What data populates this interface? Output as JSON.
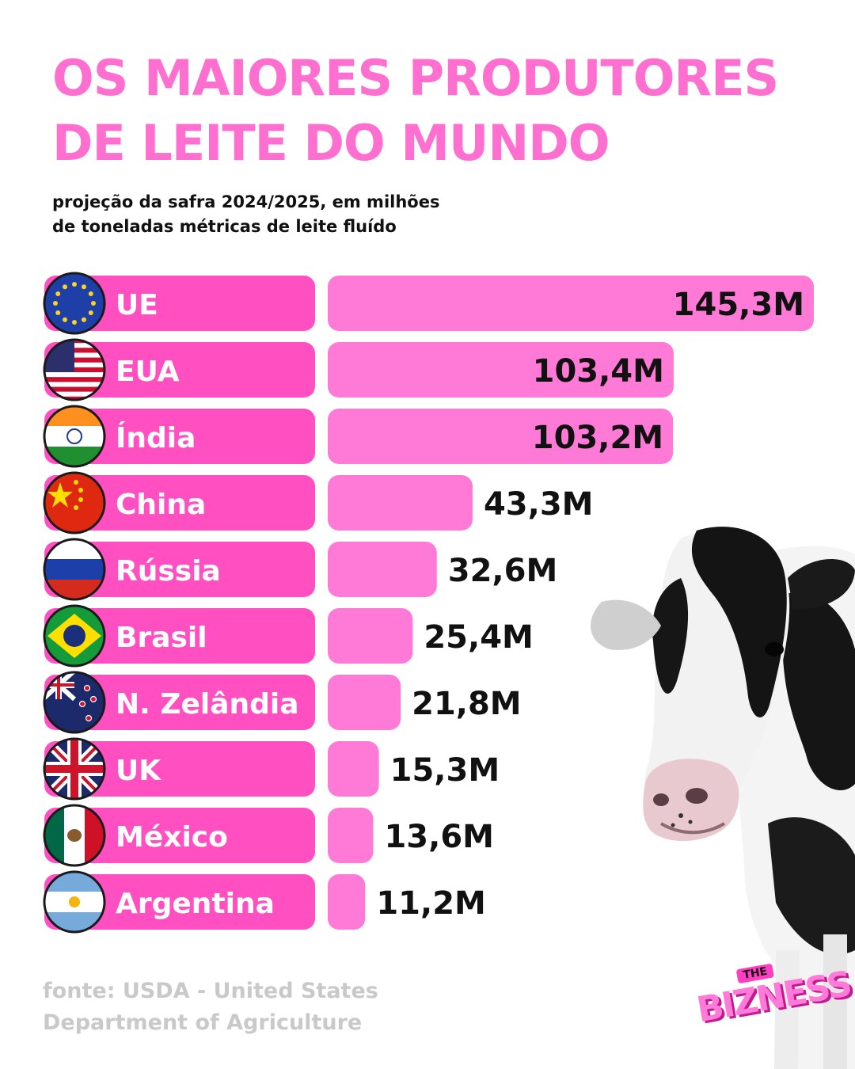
{
  "header": {
    "title_line1": "OS MAIORES PRODUTORES",
    "title_line2": "DE LEITE DO MUNDO",
    "subtitle_line1": "projeção da safra 2024/2025, em milhões",
    "subtitle_line2": "de toneladas métricas de leite fluído"
  },
  "footer": {
    "source_line1": "fonte: USDA - United States",
    "source_line2": "Department of Agriculture",
    "brand_small": "THE",
    "brand_big": "BIZNESS"
  },
  "colors": {
    "title": "#ff6fcf",
    "country_bar": "#ff4fc0",
    "value_bar": "#ff7ad6",
    "text_dark": "#111111",
    "source": "#c9c9c9"
  },
  "chart_data": {
    "type": "bar",
    "orientation": "horizontal",
    "categories": [
      "UE",
      "EUA",
      "Índia",
      "China",
      "Rússia",
      "Brasil",
      "N. Zelândia",
      "UK",
      "México",
      "Argentina"
    ],
    "values": [
      145.3,
      103.4,
      103.2,
      43.3,
      32.6,
      25.4,
      21.8,
      15.3,
      13.6,
      11.2
    ],
    "value_labels": [
      "145,3M",
      "103,4M",
      "103,2M",
      "43,3M",
      "32,6M",
      "25,4M",
      "21,8M",
      "15,3M",
      "13,6M",
      "11,2M"
    ],
    "flag_icons": [
      "eu-flag-icon",
      "usa-flag-icon",
      "india-flag-icon",
      "china-flag-icon",
      "russia-flag-icon",
      "brazil-flag-icon",
      "new-zealand-flag-icon",
      "uk-flag-icon",
      "mexico-flag-icon",
      "argentina-flag-icon"
    ],
    "title": "OS MAIORES PRODUTORES DE LEITE DO MUNDO",
    "subtitle": "projeção da safra 2024/2025, em milhões de toneladas métricas de leite fluído",
    "xlim": [
      0,
      145.3
    ],
    "grid": false,
    "legend": "none"
  }
}
